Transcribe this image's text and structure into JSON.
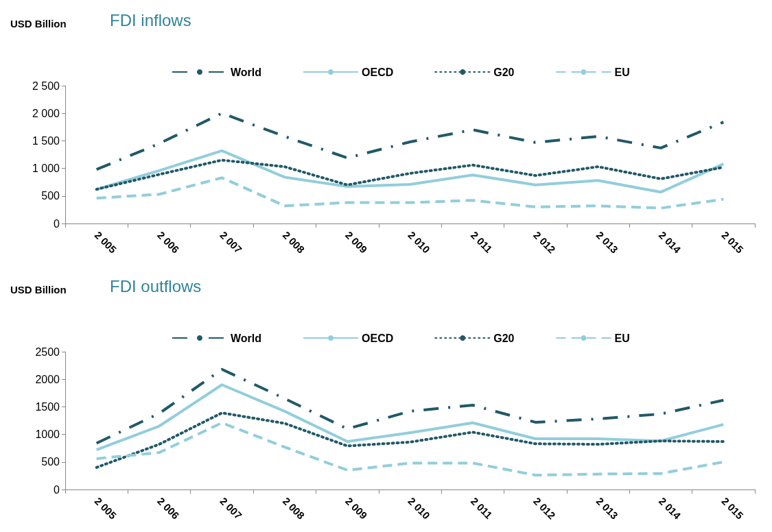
{
  "chart_data": [
    {
      "type": "line",
      "title": "FDI inflows",
      "ylabel": "USD Billion",
      "categories": [
        "2 005",
        "2 006",
        "2 007",
        "2 008",
        "2 009",
        "2 010",
        "2 011",
        "2 012",
        "2 013",
        "2 014",
        "2 015"
      ],
      "series": [
        {
          "name": "World",
          "color": "#215968",
          "line_style": "dashdot",
          "values": [
            980,
            1450,
            2000,
            1580,
            1190,
            1480,
            1700,
            1470,
            1580,
            1370,
            1840
          ]
        },
        {
          "name": "OECD",
          "color": "#92cddc",
          "line_style": "solid",
          "values": [
            620,
            960,
            1320,
            840,
            670,
            710,
            880,
            700,
            780,
            570,
            1080
          ]
        },
        {
          "name": "G20",
          "color": "#215968",
          "line_style": "dotted",
          "values": [
            620,
            890,
            1150,
            1030,
            700,
            910,
            1060,
            870,
            1030,
            810,
            1020
          ]
        },
        {
          "name": "EU",
          "color": "#92cddc",
          "line_style": "dashed",
          "values": [
            460,
            530,
            830,
            320,
            380,
            380,
            420,
            300,
            320,
            280,
            440
          ]
        }
      ],
      "ylim": [
        0,
        2500
      ],
      "yticks": [
        0,
        {
          "value": 500,
          "label": "500"
        },
        {
          "value": 1000,
          "label": "1 000"
        },
        {
          "value": 1500,
          "label": "1 500"
        },
        {
          "value": 2000,
          "label": "2 000"
        },
        {
          "value": 2500,
          "label": "2 500"
        }
      ],
      "grid": false,
      "legend": "top",
      "marker": "none"
    },
    {
      "type": "line",
      "title": "FDI outflows",
      "ylabel": "USD Billion",
      "categories": [
        "2 005",
        "2 006",
        "2 007",
        "2 008",
        "2 009",
        "2 010",
        "2 011",
        "2 012",
        "2 013",
        "2 014",
        "2 015"
      ],
      "series": [
        {
          "name": "World",
          "color": "#215968",
          "line_style": "dashdot",
          "values": [
            840,
            1380,
            2180,
            1650,
            1100,
            1420,
            1530,
            1220,
            1280,
            1370,
            1620
          ]
        },
        {
          "name": "OECD",
          "color": "#92cddc",
          "line_style": "solid",
          "values": [
            720,
            1150,
            1900,
            1420,
            870,
            1030,
            1210,
            920,
            920,
            880,
            1180
          ]
        },
        {
          "name": "G20",
          "color": "#215968",
          "line_style": "dotted",
          "values": [
            400,
            820,
            1390,
            1200,
            790,
            860,
            1040,
            830,
            820,
            880,
            870
          ]
        },
        {
          "name": "EU",
          "color": "#92cddc",
          "line_style": "dashed",
          "values": [
            560,
            670,
            1210,
            770,
            350,
            480,
            480,
            260,
            280,
            290,
            500
          ]
        }
      ],
      "ylim": [
        0,
        2500
      ],
      "yticks": [
        0,
        500,
        1000,
        1500,
        2000,
        2500
      ],
      "grid": false,
      "legend": "top",
      "marker": "none"
    }
  ]
}
